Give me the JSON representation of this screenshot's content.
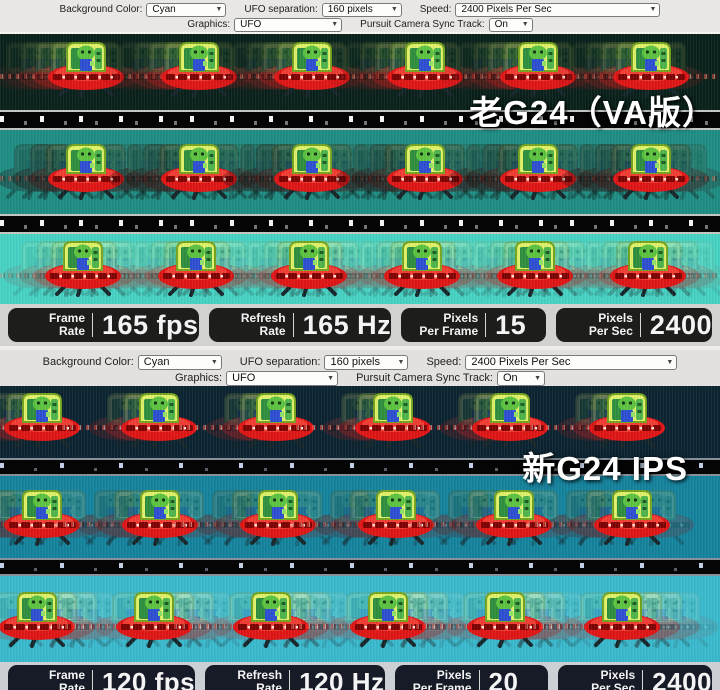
{
  "panels": [
    {
      "overlay_label": "老G24（VA版）",
      "controls": {
        "background_color_label": "Background Color:",
        "background_color_value": "Cyan",
        "ufo_separation_label": "UFO separation:",
        "ufo_separation_value": "160 pixels",
        "speed_label": "Speed:",
        "speed_value": "2400 Pixels Per Sec",
        "graphics_label": "Graphics:",
        "graphics_value": "UFO",
        "sync_track_label": "Pursuit Camera Sync Track:",
        "sync_track_value": "On"
      },
      "stats": [
        {
          "label_line1": "Frame",
          "label_line2": "Rate",
          "value": "165 fps"
        },
        {
          "label_line1": "Refresh",
          "label_line2": "Rate",
          "value": "165 Hz"
        },
        {
          "label_line1": "Pixels",
          "label_line2": "Per Frame",
          "value": "15"
        },
        {
          "label_line1": "Pixels",
          "label_line2": "Per Sec",
          "value": "2400"
        }
      ],
      "colors": {
        "control_bg": "#e9e7e4",
        "row_bgs": [
          "#0a211b",
          "#1f8d83",
          "#47d2c3"
        ],
        "stats_bg": "#d2d2d0",
        "badge_bg": "#1d1d1b"
      }
    },
    {
      "overlay_label": "新G24 IPS",
      "controls": {
        "background_color_label": "Background Color:",
        "background_color_value": "Cyan",
        "ufo_separation_label": "UFO separation:",
        "ufo_separation_value": "160 pixels",
        "speed_label": "Speed:",
        "speed_value": "2400 Pixels Per Sec",
        "graphics_label": "Graphics:",
        "graphics_value": "UFO",
        "sync_track_label": "Pursuit Camera Sync Track:",
        "sync_track_value": "On"
      },
      "stats": [
        {
          "label_line1": "Frame",
          "label_line2": "Rate",
          "value": "120 fps"
        },
        {
          "label_line1": "Refresh",
          "label_line2": "Rate",
          "value": "120 Hz"
        },
        {
          "label_line1": "Pixels",
          "label_line2": "Per Frame",
          "value": "20"
        },
        {
          "label_line1": "Pixels",
          "label_line2": "Per Sec",
          "value": "2400"
        }
      ],
      "colors": {
        "control_bg": "#e2e1df",
        "row_bgs": [
          "#0c2431",
          "#16839d",
          "#3ab9cd"
        ],
        "stats_bg": "#ccd0d5",
        "badge_bg": "#171b28"
      }
    }
  ]
}
